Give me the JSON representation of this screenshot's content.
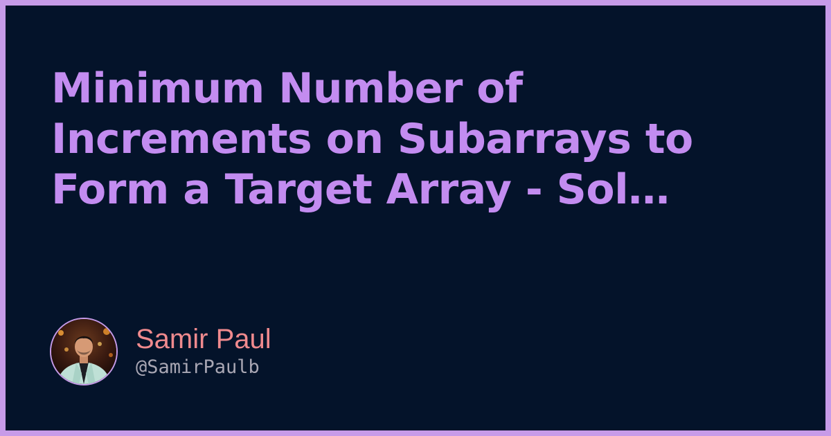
{
  "title": "Minimum Number of Increments on Subarrays to Form a Target Array - Sol…",
  "author": {
    "name": "Samir Paul",
    "handle": "@SamirPaulb",
    "avatar_icon": "author-avatar-photo"
  },
  "colors": {
    "frame": "#c79be8",
    "background": "#04132a",
    "title": "#c38cf0",
    "author_name": "#f08a8e",
    "author_handle": "#a9a7b4"
  }
}
